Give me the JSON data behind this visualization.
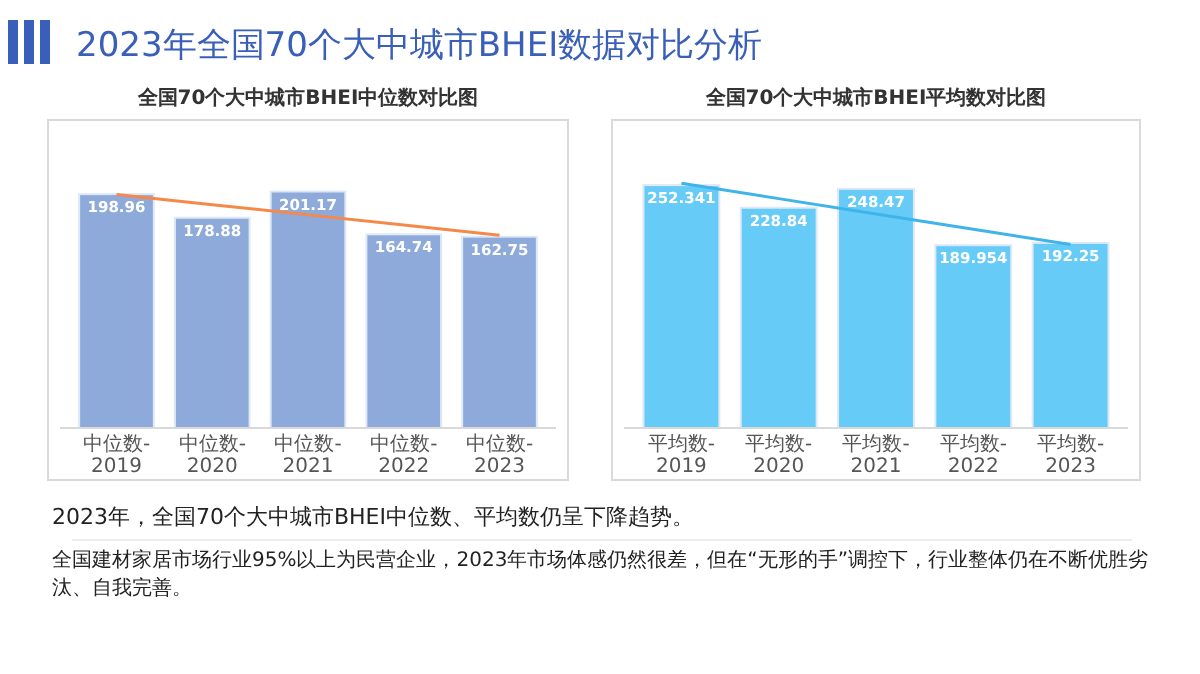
{
  "chart_data": [
    {
      "type": "other",
      "title": "2023年全国70个大中城市BHEI数据对比分析",
      "annotations": [
        "2023年，全国70个大中城市BHEI中位数、平均数仍呈下降趋势。",
        "全国建材家居市场行业95%以上为民营企业，2023年市场体感仍然很差，但在“无形的手”调控下，行业整体仍在不断优胜劣汰、自我完善。"
      ]
    },
    {
      "type": "bar",
      "title": "全国70个大中城市BHEI中位数对比图",
      "categories": [
        "中位数-2019",
        "中位数-2020",
        "中位数-2021",
        "中位数-2022",
        "中位数-2023"
      ],
      "ylim": [
        0,
        262
      ],
      "tick_labels": "x",
      "series": [
        {
          "color": "#8eaadb",
          "values": [
            198.96,
            178.88,
            201.17,
            164.74,
            162.75
          ],
          "value_labels": [
            "198.96",
            "178.88",
            "201.17",
            "164.74",
            "162.75"
          ]
        },
        {
          "type": "line",
          "color": "#f4894a",
          "values": [
            198.6,
            190.0,
            181.3,
            172.6,
            164.0
          ]
        }
      ]
    },
    {
      "type": "bar",
      "title": "全国70个大中城市BHEI平均数对比图",
      "categories": [
        "平均数-2019",
        "平均数-2020",
        "平均数-2021",
        "平均数-2022",
        "平均数-2023"
      ],
      "ylim": [
        0,
        320
      ],
      "tick_labels": "x",
      "series": [
        {
          "color": "#66ccf7",
          "values": [
            252.341,
            228.84,
            248.47,
            189.954,
            192.25
          ],
          "value_labels": [
            "252.341",
            "228.84",
            "248.47",
            "189.954",
            "192.25"
          ]
        },
        {
          "type": "line",
          "color": "#3fb4ea",
          "values": [
            254.2,
            238.3,
            222.4,
            206.5,
            190.6
          ]
        }
      ]
    }
  ]
}
